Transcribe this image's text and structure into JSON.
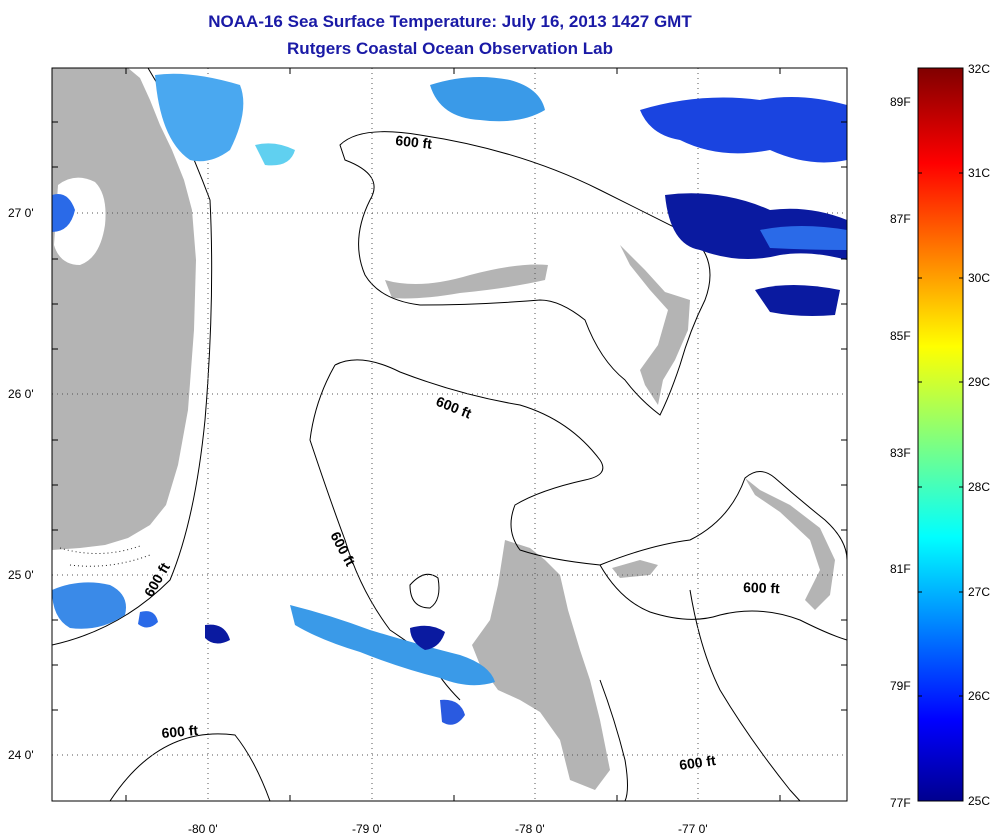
{
  "header": {
    "title": "NOAA-16 Sea Surface Temperature:  July 16, 2013 1427 GMT",
    "subtitle": "Rutgers Coastal Ocean Observation Lab"
  },
  "map": {
    "lat_labels": [
      "27 0'",
      "26 0'",
      "25 0'",
      "24 0'"
    ],
    "lon_labels": [
      "-80 0'",
      "-79 0'",
      "-78 0'",
      "-77 0'"
    ],
    "contour_label": "600 ft",
    "contour_label_count": 7,
    "land_color": "#b4b4b4",
    "gridlines": "dotted"
  },
  "colorbar": {
    "celsius": [
      "32C",
      "31C",
      "30C",
      "29C",
      "28C",
      "27C",
      "26C",
      "25C"
    ],
    "fahrenheit": [
      "89F",
      "87F",
      "85F",
      "83F",
      "81F",
      "79F",
      "77F"
    ],
    "min_c": 25,
    "max_c": 32,
    "colormap": "jet"
  }
}
